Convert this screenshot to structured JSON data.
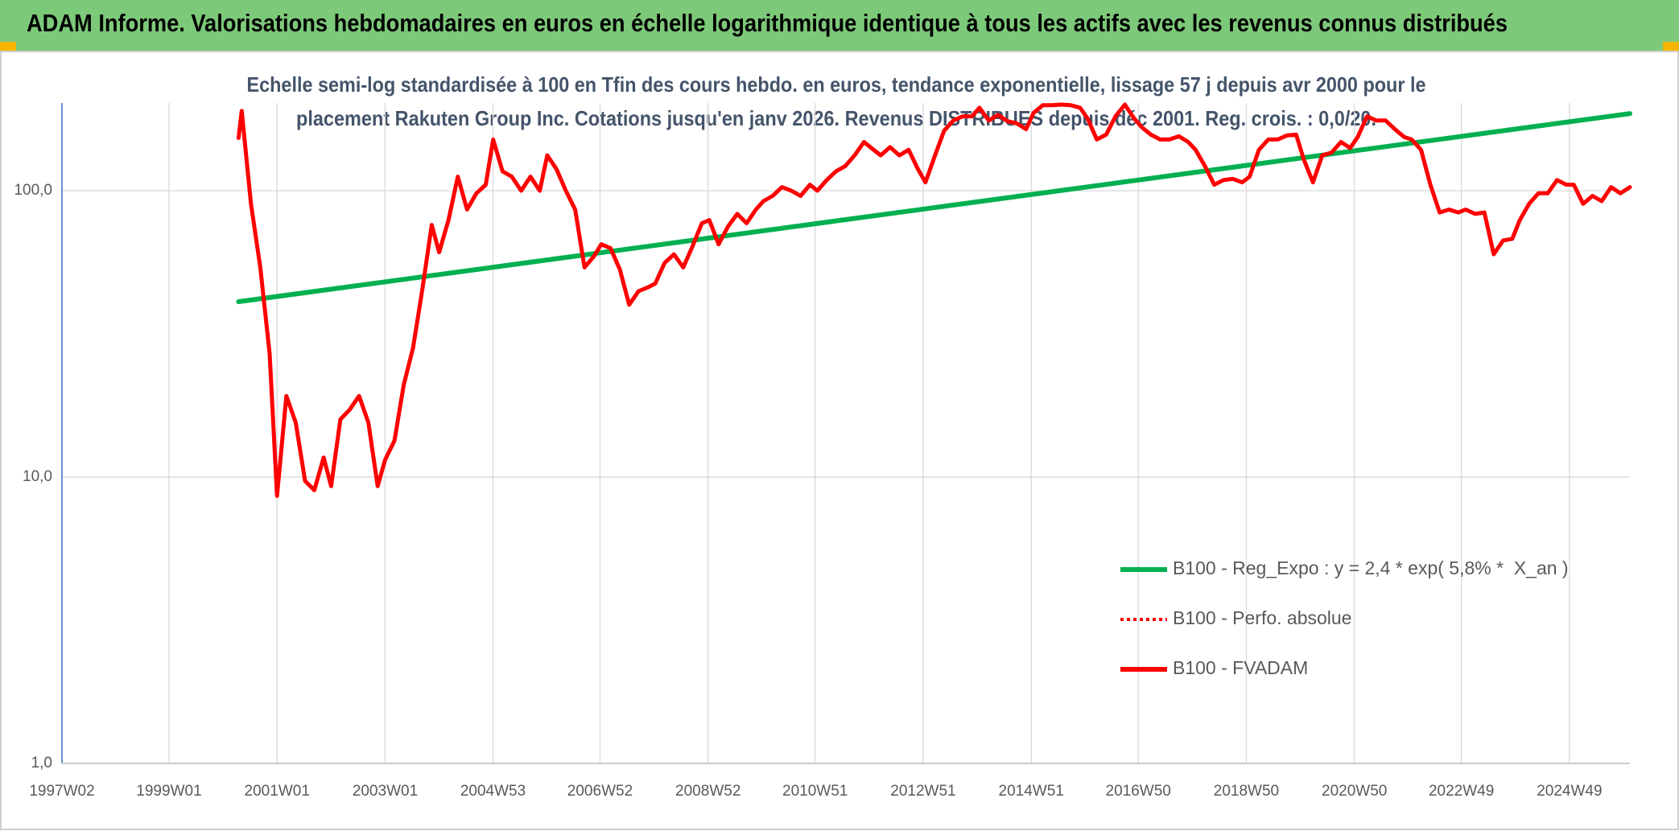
{
  "chart_data": {
    "type": "line",
    "title": "ADAM Informe. Valorisations hebdomadaires en euros en échelle logarithmique identique à tous les actifs avec les revenus connus distribués",
    "subtitle": [
      "Echelle semi-log standardisée à 100 en Tfin des cours hebdo. en euros, tendance exponentielle, lissage 57 j depuis avr 2000 pour le",
      "placement Rakuten Group Inc. Cotations jusqu'en janv 2026. Revenus DISTRIBUES depuis déc 2001. Reg. crois. : 0,0/20."
    ],
    "y_scale": "log",
    "grid": true,
    "ylim": [
      1,
      200
    ],
    "yticks": [
      {
        "value": 1,
        "label": "1,0"
      },
      {
        "value": 10,
        "label": "10,0"
      },
      {
        "value": 100,
        "label": "100,0"
      }
    ],
    "xlim": [
      "1997W02",
      "2026W03"
    ],
    "xticks": [
      "1997W02",
      "1999W01",
      "2001W01",
      "2003W01",
      "2004W53",
      "2006W52",
      "2008W52",
      "2010W51",
      "2012W51",
      "2014W51",
      "2016W50",
      "2018W50",
      "2020W50",
      "2022W49",
      "2024W49"
    ],
    "series": [
      {
        "name": "B100 - Reg_Expo : y = 2,4 * exp( 5,8% *  X_an )",
        "color": "#00b050",
        "style": "solid",
        "x": [
          "2000W16",
          "2026W03"
        ],
        "values": [
          41,
          186
        ]
      },
      {
        "name": "B100 - Perfo. absolue",
        "color": "#ff0000",
        "style": "dotted",
        "x": [],
        "values": []
      },
      {
        "name": "B100 - FVADAM",
        "color": "#ff0000",
        "style": "solid",
        "x": [
          "2000W16",
          "2000W19",
          "2000W28",
          "2000W37",
          "2000W46",
          "2001W01",
          "2001W10",
          "2001W19",
          "2001W28",
          "2001W37",
          "2001W46",
          "2002W01",
          "2002W10",
          "2002W19",
          "2002W28",
          "2002W37",
          "2002W46",
          "2003W01",
          "2003W10",
          "2003W19",
          "2003W28",
          "2003W37",
          "2003W46",
          "2004W01",
          "2004W10",
          "2004W19",
          "2004W28",
          "2004W37",
          "2004W46",
          "2005W01",
          "2005W10",
          "2005W19",
          "2005W28",
          "2005W37",
          "2005W46",
          "2006W01",
          "2006W10",
          "2006W19",
          "2006W28",
          "2006W37",
          "2006W46",
          "2007W01",
          "2007W10",
          "2007W19",
          "2007W28",
          "2007W37",
          "2007W46",
          "2008W01",
          "2008W10",
          "2008W19",
          "2008W28",
          "2008W37",
          "2008W46",
          "2009W01",
          "2009W10",
          "2009W19",
          "2009W28",
          "2009W37",
          "2009W46",
          "2010W01",
          "2010W10",
          "2010W19",
          "2010W28",
          "2010W37",
          "2010W46",
          "2011W01",
          "2011W10",
          "2011W19",
          "2011W28",
          "2011W37",
          "2011W46",
          "2012W01",
          "2012W10",
          "2012W19",
          "2012W28",
          "2012W37",
          "2012W46",
          "2013W01",
          "2013W10",
          "2013W19",
          "2013W28",
          "2013W37",
          "2013W46",
          "2014W01",
          "2014W10",
          "2014W19",
          "2014W28",
          "2014W37",
          "2014W46",
          "2015W01",
          "2015W10",
          "2015W19",
          "2015W28",
          "2015W37",
          "2015W46",
          "2016W01",
          "2016W10",
          "2016W19",
          "2016W28",
          "2016W37",
          "2016W46",
          "2017W01",
          "2017W10",
          "2017W19",
          "2017W28",
          "2017W37",
          "2017W46",
          "2018W01",
          "2018W10",
          "2018W19",
          "2018W28",
          "2018W37",
          "2018W46",
          "2019W01",
          "2019W10",
          "2019W19",
          "2019W28",
          "2019W37",
          "2019W46",
          "2020W01",
          "2020W10",
          "2020W19",
          "2020W28",
          "2020W37",
          "2020W46",
          "2021W01",
          "2021W10",
          "2021W19",
          "2021W28",
          "2021W37",
          "2021W46",
          "2022W01",
          "2022W10",
          "2022W19",
          "2022W28",
          "2022W37",
          "2022W46",
          "2023W01",
          "2023W10",
          "2023W19",
          "2023W28",
          "2023W37",
          "2023W46",
          "2024W01",
          "2024W10",
          "2024W19",
          "2024W28",
          "2024W37",
          "2024W46",
          "2025W01",
          "2025W10",
          "2025W19",
          "2025W28",
          "2025W37",
          "2025W46",
          "2026W03"
        ],
        "values": [
          153,
          190,
          90,
          54,
          27,
          8.6,
          19.2,
          15.5,
          9.7,
          9.0,
          11.7,
          9.3,
          15.9,
          17.2,
          19.2,
          15.5,
          9.3,
          11.5,
          13.4,
          21,
          28.3,
          45.4,
          76,
          61,
          79,
          112,
          86,
          98,
          105,
          151,
          117,
          112,
          100,
          112,
          100,
          133,
          119,
          100,
          86,
          54,
          59,
          65,
          63,
          53,
          40,
          44.6,
          46,
          47.4,
          56,
          60,
          54,
          64,
          77,
          79,
          65,
          75,
          83,
          77,
          86,
          92,
          96,
          103,
          100,
          96,
          105,
          100,
          109,
          117,
          122,
          133,
          148,
          141,
          133,
          142,
          133,
          139,
          119,
          107,
          132,
          162,
          176,
          182,
          182,
          195,
          176,
          184,
          175,
          172,
          164,
          187,
          199,
          199,
          200,
          199,
          195,
          179,
          151,
          157,
          182,
          200,
          179,
          167,
          157,
          151,
          151,
          155,
          148,
          139,
          122,
          105,
          109,
          110,
          107,
          112,
          139,
          151,
          151,
          156,
          157,
          129,
          107,
          133,
          136,
          148,
          141,
          154,
          182,
          176,
          176,
          164,
          154,
          151,
          139,
          105,
          84,
          86,
          84,
          86,
          83,
          84,
          60,
          67,
          68,
          79,
          90,
          98,
          98,
          109,
          105,
          105,
          90,
          96,
          92,
          103,
          98,
          103
        ]
      }
    ]
  }
}
